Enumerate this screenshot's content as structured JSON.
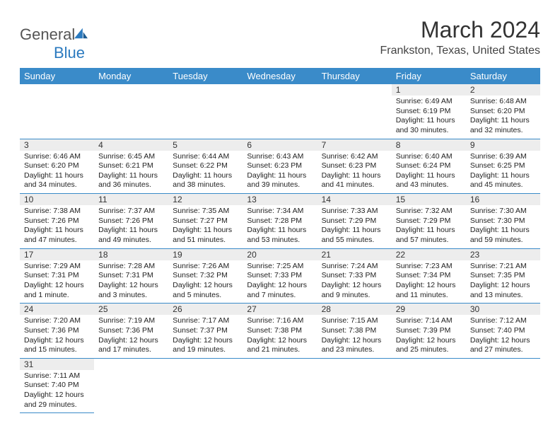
{
  "brand": {
    "namePart1": "General",
    "namePart2": "Blue"
  },
  "title": "March 2024",
  "location": "Frankston, Texas, United States",
  "colors": {
    "headerBg": "#3a8bc9",
    "headerText": "#ffffff",
    "dayBg": "#ededed",
    "rule": "#3a8bc9"
  },
  "weekdays": [
    "Sunday",
    "Monday",
    "Tuesday",
    "Wednesday",
    "Thursday",
    "Friday",
    "Saturday"
  ],
  "weeks": [
    [
      null,
      null,
      null,
      null,
      null,
      {
        "n": "1",
        "sr": "Sunrise: 6:49 AM",
        "ss": "Sunset: 6:19 PM",
        "d1": "Daylight: 11 hours",
        "d2": "and 30 minutes."
      },
      {
        "n": "2",
        "sr": "Sunrise: 6:48 AM",
        "ss": "Sunset: 6:20 PM",
        "d1": "Daylight: 11 hours",
        "d2": "and 32 minutes."
      }
    ],
    [
      {
        "n": "3",
        "sr": "Sunrise: 6:46 AM",
        "ss": "Sunset: 6:20 PM",
        "d1": "Daylight: 11 hours",
        "d2": "and 34 minutes."
      },
      {
        "n": "4",
        "sr": "Sunrise: 6:45 AM",
        "ss": "Sunset: 6:21 PM",
        "d1": "Daylight: 11 hours",
        "d2": "and 36 minutes."
      },
      {
        "n": "5",
        "sr": "Sunrise: 6:44 AM",
        "ss": "Sunset: 6:22 PM",
        "d1": "Daylight: 11 hours",
        "d2": "and 38 minutes."
      },
      {
        "n": "6",
        "sr": "Sunrise: 6:43 AM",
        "ss": "Sunset: 6:23 PM",
        "d1": "Daylight: 11 hours",
        "d2": "and 39 minutes."
      },
      {
        "n": "7",
        "sr": "Sunrise: 6:42 AM",
        "ss": "Sunset: 6:23 PM",
        "d1": "Daylight: 11 hours",
        "d2": "and 41 minutes."
      },
      {
        "n": "8",
        "sr": "Sunrise: 6:40 AM",
        "ss": "Sunset: 6:24 PM",
        "d1": "Daylight: 11 hours",
        "d2": "and 43 minutes."
      },
      {
        "n": "9",
        "sr": "Sunrise: 6:39 AM",
        "ss": "Sunset: 6:25 PM",
        "d1": "Daylight: 11 hours",
        "d2": "and 45 minutes."
      }
    ],
    [
      {
        "n": "10",
        "sr": "Sunrise: 7:38 AM",
        "ss": "Sunset: 7:26 PM",
        "d1": "Daylight: 11 hours",
        "d2": "and 47 minutes."
      },
      {
        "n": "11",
        "sr": "Sunrise: 7:37 AM",
        "ss": "Sunset: 7:26 PM",
        "d1": "Daylight: 11 hours",
        "d2": "and 49 minutes."
      },
      {
        "n": "12",
        "sr": "Sunrise: 7:35 AM",
        "ss": "Sunset: 7:27 PM",
        "d1": "Daylight: 11 hours",
        "d2": "and 51 minutes."
      },
      {
        "n": "13",
        "sr": "Sunrise: 7:34 AM",
        "ss": "Sunset: 7:28 PM",
        "d1": "Daylight: 11 hours",
        "d2": "and 53 minutes."
      },
      {
        "n": "14",
        "sr": "Sunrise: 7:33 AM",
        "ss": "Sunset: 7:29 PM",
        "d1": "Daylight: 11 hours",
        "d2": "and 55 minutes."
      },
      {
        "n": "15",
        "sr": "Sunrise: 7:32 AM",
        "ss": "Sunset: 7:29 PM",
        "d1": "Daylight: 11 hours",
        "d2": "and 57 minutes."
      },
      {
        "n": "16",
        "sr": "Sunrise: 7:30 AM",
        "ss": "Sunset: 7:30 PM",
        "d1": "Daylight: 11 hours",
        "d2": "and 59 minutes."
      }
    ],
    [
      {
        "n": "17",
        "sr": "Sunrise: 7:29 AM",
        "ss": "Sunset: 7:31 PM",
        "d1": "Daylight: 12 hours",
        "d2": "and 1 minute."
      },
      {
        "n": "18",
        "sr": "Sunrise: 7:28 AM",
        "ss": "Sunset: 7:31 PM",
        "d1": "Daylight: 12 hours",
        "d2": "and 3 minutes."
      },
      {
        "n": "19",
        "sr": "Sunrise: 7:26 AM",
        "ss": "Sunset: 7:32 PM",
        "d1": "Daylight: 12 hours",
        "d2": "and 5 minutes."
      },
      {
        "n": "20",
        "sr": "Sunrise: 7:25 AM",
        "ss": "Sunset: 7:33 PM",
        "d1": "Daylight: 12 hours",
        "d2": "and 7 minutes."
      },
      {
        "n": "21",
        "sr": "Sunrise: 7:24 AM",
        "ss": "Sunset: 7:33 PM",
        "d1": "Daylight: 12 hours",
        "d2": "and 9 minutes."
      },
      {
        "n": "22",
        "sr": "Sunrise: 7:23 AM",
        "ss": "Sunset: 7:34 PM",
        "d1": "Daylight: 12 hours",
        "d2": "and 11 minutes."
      },
      {
        "n": "23",
        "sr": "Sunrise: 7:21 AM",
        "ss": "Sunset: 7:35 PM",
        "d1": "Daylight: 12 hours",
        "d2": "and 13 minutes."
      }
    ],
    [
      {
        "n": "24",
        "sr": "Sunrise: 7:20 AM",
        "ss": "Sunset: 7:36 PM",
        "d1": "Daylight: 12 hours",
        "d2": "and 15 minutes."
      },
      {
        "n": "25",
        "sr": "Sunrise: 7:19 AM",
        "ss": "Sunset: 7:36 PM",
        "d1": "Daylight: 12 hours",
        "d2": "and 17 minutes."
      },
      {
        "n": "26",
        "sr": "Sunrise: 7:17 AM",
        "ss": "Sunset: 7:37 PM",
        "d1": "Daylight: 12 hours",
        "d2": "and 19 minutes."
      },
      {
        "n": "27",
        "sr": "Sunrise: 7:16 AM",
        "ss": "Sunset: 7:38 PM",
        "d1": "Daylight: 12 hours",
        "d2": "and 21 minutes."
      },
      {
        "n": "28",
        "sr": "Sunrise: 7:15 AM",
        "ss": "Sunset: 7:38 PM",
        "d1": "Daylight: 12 hours",
        "d2": "and 23 minutes."
      },
      {
        "n": "29",
        "sr": "Sunrise: 7:14 AM",
        "ss": "Sunset: 7:39 PM",
        "d1": "Daylight: 12 hours",
        "d2": "and 25 minutes."
      },
      {
        "n": "30",
        "sr": "Sunrise: 7:12 AM",
        "ss": "Sunset: 7:40 PM",
        "d1": "Daylight: 12 hours",
        "d2": "and 27 minutes."
      }
    ],
    [
      {
        "n": "31",
        "sr": "Sunrise: 7:11 AM",
        "ss": "Sunset: 7:40 PM",
        "d1": "Daylight: 12 hours",
        "d2": "and 29 minutes."
      },
      null,
      null,
      null,
      null,
      null,
      null
    ]
  ]
}
